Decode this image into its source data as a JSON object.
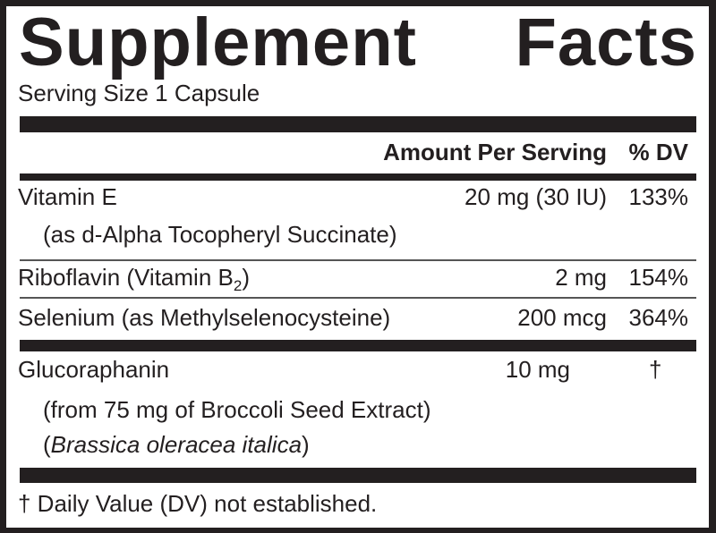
{
  "title_words": [
    "Supplement",
    "Facts"
  ],
  "serving_size": "Serving Size 1 Capsule",
  "header": {
    "amount": "Amount Per Serving",
    "dv": "% DV"
  },
  "rows": [
    {
      "name": "Vitamin E",
      "detail": "(as d-Alpha Tocopheryl Succinate)",
      "amount": "20 mg (30 IU)",
      "dv": "133%"
    },
    {
      "name": "Riboflavin (Vitamin B",
      "name_sub": "2",
      "name_end": ")",
      "amount": "2 mg",
      "dv": "154%"
    },
    {
      "name": "Selenium (as Methylselenocysteine)",
      "amount": "200 mcg",
      "dv": "364%"
    },
    {
      "name": "Glucoraphanin",
      "detail": "(from 75 mg of Broccoli Seed Extract)",
      "detail2_open": "(",
      "detail2_italic": "Brassica oleracea italica",
      "detail2_close": ")",
      "amount": "10 mg",
      "dv": "†"
    }
  ],
  "footnote": "† Daily Value (DV) not established."
}
